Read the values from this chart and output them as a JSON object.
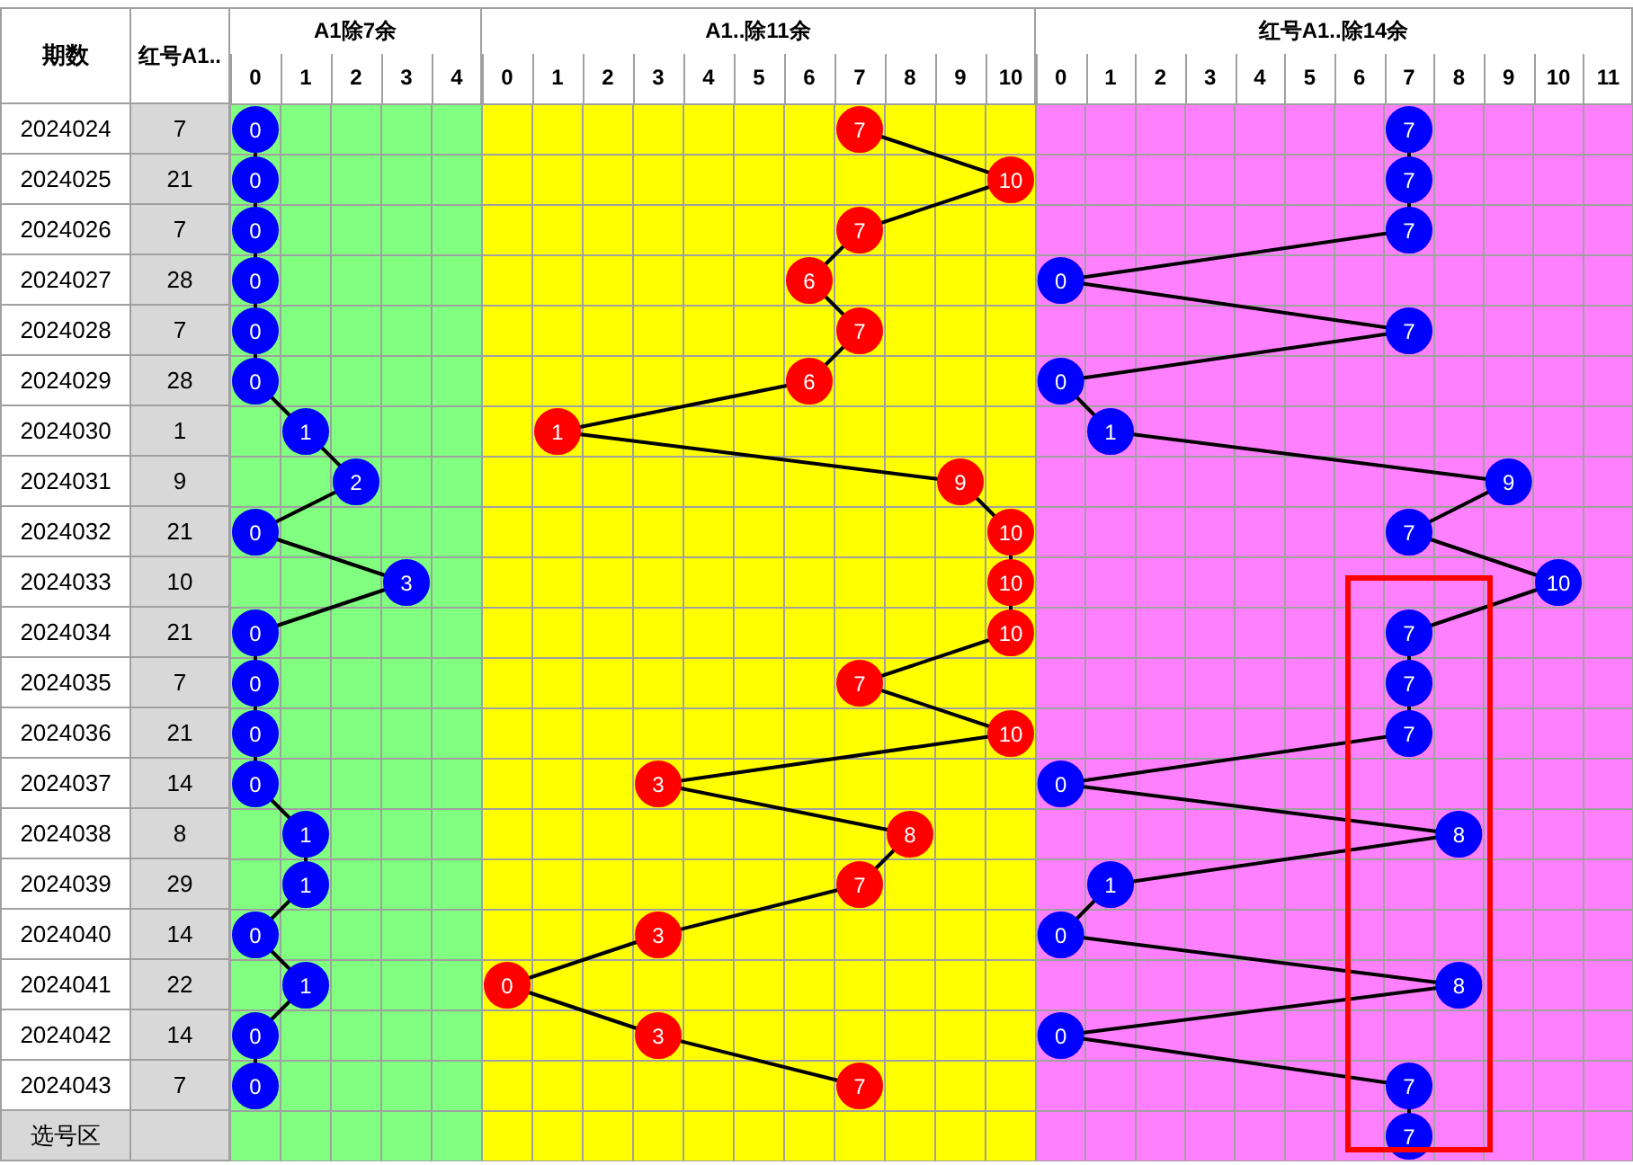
{
  "chart_data": [
    {
      "type": "heatmap",
      "ylabel": "期数",
      "categories": [
        "红号A1.."
      ],
      "y_categories": [
        "2024024",
        "2024025",
        "2024026",
        "2024027",
        "2024028",
        "2024029",
        "2024030",
        "2024031",
        "2024032",
        "2024033",
        "2024034",
        "2024035",
        "2024036",
        "2024037",
        "2024038",
        "2024039",
        "2024040",
        "2024041",
        "2024042",
        "2024043",
        "选号区"
      ],
      "cells": [
        [
          7
        ],
        [
          21
        ],
        [
          7
        ],
        [
          28
        ],
        [
          7
        ],
        [
          28
        ],
        [
          1
        ],
        [
          9
        ],
        [
          21
        ],
        [
          10
        ],
        [
          21
        ],
        [
          7
        ],
        [
          21
        ],
        [
          14
        ],
        [
          8
        ],
        [
          29
        ],
        [
          14
        ],
        [
          22
        ],
        [
          14
        ],
        [
          7
        ],
        [
          null
        ]
      ],
      "data_labels": true
    },
    {
      "type": "line",
      "title": "A1除7余",
      "orientation": "horizontal",
      "categories": [
        null,
        null,
        null,
        null,
        null,
        null,
        null,
        null,
        null,
        null,
        null,
        null,
        null,
        null,
        null,
        null,
        null,
        null,
        null,
        null,
        null
      ],
      "values": [
        0,
        0,
        0,
        0,
        0,
        0,
        1,
        2,
        0,
        3,
        0,
        0,
        0,
        0,
        1,
        1,
        0,
        1,
        0,
        0,
        null
      ],
      "color": "#000000",
      "colors": [
        "#0000ff",
        "#0000ff",
        "#0000ff",
        "#0000ff",
        "#0000ff",
        "#0000ff",
        "#0000ff",
        "#0000ff",
        "#0000ff",
        "#0000ff",
        "#0000ff",
        "#0000ff",
        "#0000ff",
        "#0000ff",
        "#0000ff",
        "#0000ff",
        "#0000ff",
        "#0000ff",
        "#0000ff",
        "#0000ff",
        null
      ],
      "xlim": [
        -0.5,
        4.5
      ],
      "xticks": [
        0,
        1,
        2,
        3,
        4
      ],
      "grid": true,
      "marker": "circle",
      "data_labels": true,
      "tick_labels": "x"
    },
    {
      "type": "line",
      "title": "A1..除11余",
      "orientation": "horizontal",
      "categories": [
        null,
        null,
        null,
        null,
        null,
        null,
        null,
        null,
        null,
        null,
        null,
        null,
        null,
        null,
        null,
        null,
        null,
        null,
        null,
        null,
        null
      ],
      "values": [
        7,
        10,
        7,
        6,
        7,
        6,
        1,
        9,
        10,
        10,
        10,
        7,
        10,
        3,
        8,
        7,
        3,
        0,
        3,
        7,
        null
      ],
      "color": "#000000",
      "colors": [
        "#ff0000",
        "#ff0000",
        "#ff0000",
        "#ff0000",
        "#ff0000",
        "#ff0000",
        "#ff0000",
        "#ff0000",
        "#ff0000",
        "#ff0000",
        "#ff0000",
        "#ff0000",
        "#ff0000",
        "#ff0000",
        "#ff0000",
        "#ff0000",
        "#ff0000",
        "#ff0000",
        "#ff0000",
        "#ff0000",
        null
      ],
      "xlim": [
        -0.5,
        10.5
      ],
      "xticks": [
        0,
        1,
        2,
        3,
        4,
        5,
        6,
        7,
        8,
        9,
        10
      ],
      "grid": true,
      "marker": "circle",
      "data_labels": true,
      "tick_labels": "x"
    },
    {
      "type": "line",
      "title": "红号A1..除14余",
      "orientation": "horizontal",
      "categories": [
        null,
        null,
        null,
        null,
        null,
        null,
        null,
        null,
        null,
        null,
        null,
        null,
        null,
        null,
        null,
        null,
        null,
        null,
        null,
        null,
        null
      ],
      "values": [
        7,
        7,
        7,
        0,
        7,
        0,
        1,
        9,
        7,
        10,
        7,
        7,
        7,
        0,
        8,
        1,
        0,
        8,
        0,
        7,
        7
      ],
      "color": "#000000",
      "colors": [
        "#0000ff",
        "#0000ff",
        "#0000ff",
        "#0000ff",
        "#0000ff",
        "#0000ff",
        "#0000ff",
        "#0000ff",
        "#0000ff",
        "#0000ff",
        "#0000ff",
        "#0000ff",
        "#0000ff",
        "#0000ff",
        "#0000ff",
        "#0000ff",
        "#0000ff",
        "#0000ff",
        "#0000ff",
        "#0000ff",
        "#0000ff"
      ],
      "xlim": [
        -0.5,
        11.5
      ],
      "xticks": [
        0,
        1,
        2,
        3,
        4,
        5,
        6,
        7,
        8,
        9,
        10,
        11
      ],
      "grid": true,
      "marker": "circle",
      "data_labels": true,
      "tick_labels": "x"
    }
  ]
}
